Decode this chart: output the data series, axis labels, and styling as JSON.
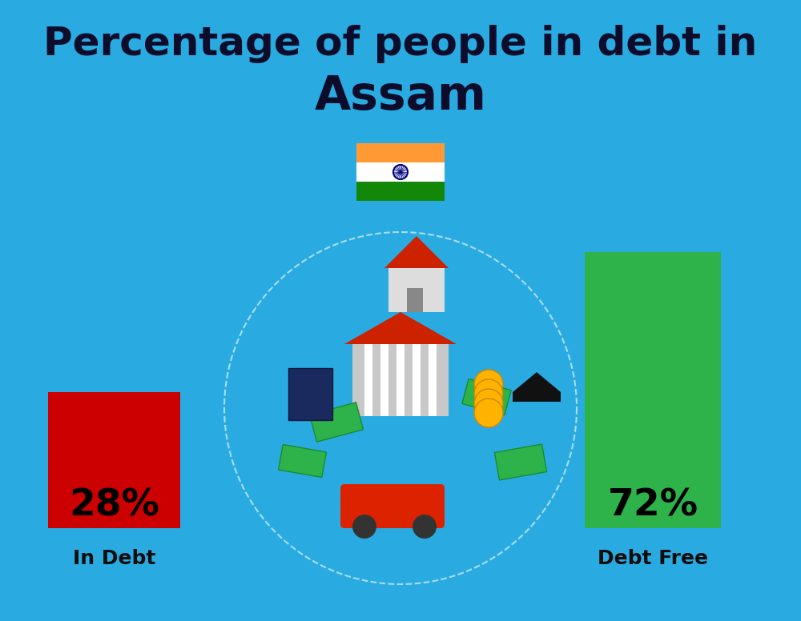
{
  "title_line1": "Percentage of people in debt in",
  "title_line2": "Assam",
  "background_color": "#29ABE2",
  "bar_left_label": "In Debt",
  "bar_right_label": "Debt Free",
  "bar_left_color": "#CC0000",
  "bar_right_color": "#2DB34A",
  "bar_left_pct": "28%",
  "bar_right_pct": "72%",
  "title_color": "#0d0d2b",
  "label_color": "#0d0d0d",
  "pct_fontsize": 34,
  "label_fontsize": 18,
  "title_fontsize1": 36,
  "title_fontsize2": 42,
  "fig_width": 10.0,
  "fig_height": 7.76,
  "dpi": 100
}
